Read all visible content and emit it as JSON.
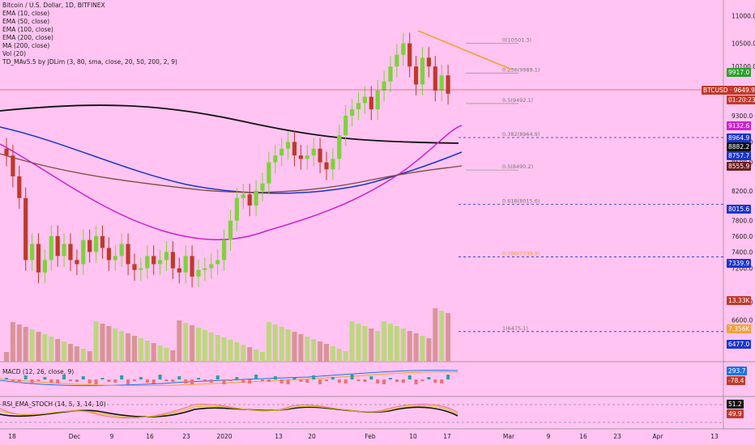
{
  "legend": {
    "title": "Bitcoin / U.S. Dollar, 1D, BITFINEX",
    "lines": [
      "EMA (10, close)",
      "EMA (50, close)",
      "EMA (100, close)",
      "EMA (200, close)",
      "MA (200, close)",
      "Vol (20)",
      "TD_MAv5.5 by JDLim (3, 80, sma, close, 20, 50, 200, 2, 9)"
    ]
  },
  "macd_label": "MACD (12, 26, close, 9)",
  "rsi_label": "RSI_EMA_STOCH (14, 5, 3, 14, 10)",
  "colors": {
    "background": "#ffc4f1",
    "up": "#7cd33b",
    "down": "#c0392b",
    "ema50": "#cc22cc",
    "ema100": "#1a35cc",
    "ema200": "#111111",
    "ma200": "#7a4a3a",
    "trendline": "#f7a030",
    "volume_up": "#bdd67f",
    "volume_down": "#d99499"
  },
  "chart_data": {
    "type": "candlestick",
    "title": "Bitcoin / U.S. Dollar, 1D, BITFINEX",
    "y_axis": [
      "11000.0",
      "10500.0",
      "10100.0",
      "9700.0",
      "9300.0",
      "8900.0",
      "8600.0",
      "8200.0",
      "7800.0",
      "7600.0",
      "7400.0",
      "7200.0",
      "6800.0",
      "6600.0"
    ],
    "x_axis": [
      "18",
      "Dec",
      "9",
      "16",
      "23",
      "2020",
      "13",
      "20",
      "Feb",
      "10",
      "17",
      "Mar",
      "9",
      "16",
      "23",
      "Apr",
      "13"
    ],
    "fib_levels": [
      {
        "label": "0(10501.3)",
        "value": 10501.3
      },
      {
        "label": "0.236(9989.1)",
        "value": 9989.1
      },
      {
        "label": "0.5(9492.1)",
        "value": 9492.1
      },
      {
        "label": "0.382(8964.9)",
        "value": 8964.9
      },
      {
        "label": "0.5(8490.2)",
        "value": 8490.2
      },
      {
        "label": "0.618(8015.6)",
        "value": 8015.6
      },
      {
        "label": "0.786(7339.9)",
        "value": 7339.9
      },
      {
        "label": "1(6475.1)",
        "value": 6475.1
      }
    ],
    "price_tags": [
      {
        "label": "9917.0",
        "color": "#2ca02c"
      },
      {
        "label": "BTCUSD · 9649.9",
        "color": "#c0392b"
      },
      {
        "label": "01:20:23",
        "color": "#c0392b"
      },
      {
        "label": "9132.6",
        "color": "#cc22cc"
      },
      {
        "label": "8964.9",
        "color": "#1a35cc"
      },
      {
        "label": "8882.2",
        "color": "#111111"
      },
      {
        "label": "8757.7",
        "color": "#1a35cc"
      },
      {
        "label": "8555.9",
        "color": "#6b1f1f"
      },
      {
        "label": "8015.6",
        "color": "#1a35cc"
      },
      {
        "label": "7339.9",
        "color": "#1a35cc"
      },
      {
        "label": "13.33K",
        "color": "#c0392b"
      },
      {
        "label": "7.356K",
        "color": "#f7a030"
      },
      {
        "label": "6477.0",
        "color": "#1a35cc"
      }
    ],
    "macd_tags": [
      {
        "label": "293.7",
        "color": "#1a73e8"
      },
      {
        "label": "-78.4",
        "color": "#c0392b"
      }
    ],
    "rsi_tags": [
      {
        "label": "51.2",
        "color": "#111111"
      },
      {
        "label": "49.9",
        "color": "#c0392b"
      }
    ],
    "closes": [
      8700,
      8400,
      8100,
      7300,
      7500,
      7150,
      7300,
      7600,
      7350,
      7500,
      7300,
      7250,
      7550,
      7400,
      7600,
      7450,
      7300,
      7350,
      7500,
      7250,
      7180,
      7200,
      7350,
      7250,
      7300,
      7400,
      7200,
      7150,
      7350,
      7100,
      7180,
      7200,
      7250,
      7300,
      7550,
      7800,
      8100,
      8150,
      8000,
      8200,
      8300,
      8600,
      8700,
      8800,
      8900,
      8700,
      8650,
      8700,
      8800,
      8600,
      8500,
      8650,
      9000,
      9300,
      9400,
      9500,
      9600,
      9400,
      9700,
      9850,
      10100,
      10300,
      10500,
      10100,
      9800,
      10250,
      10100,
      9700,
      9950,
      9650
    ]
  }
}
